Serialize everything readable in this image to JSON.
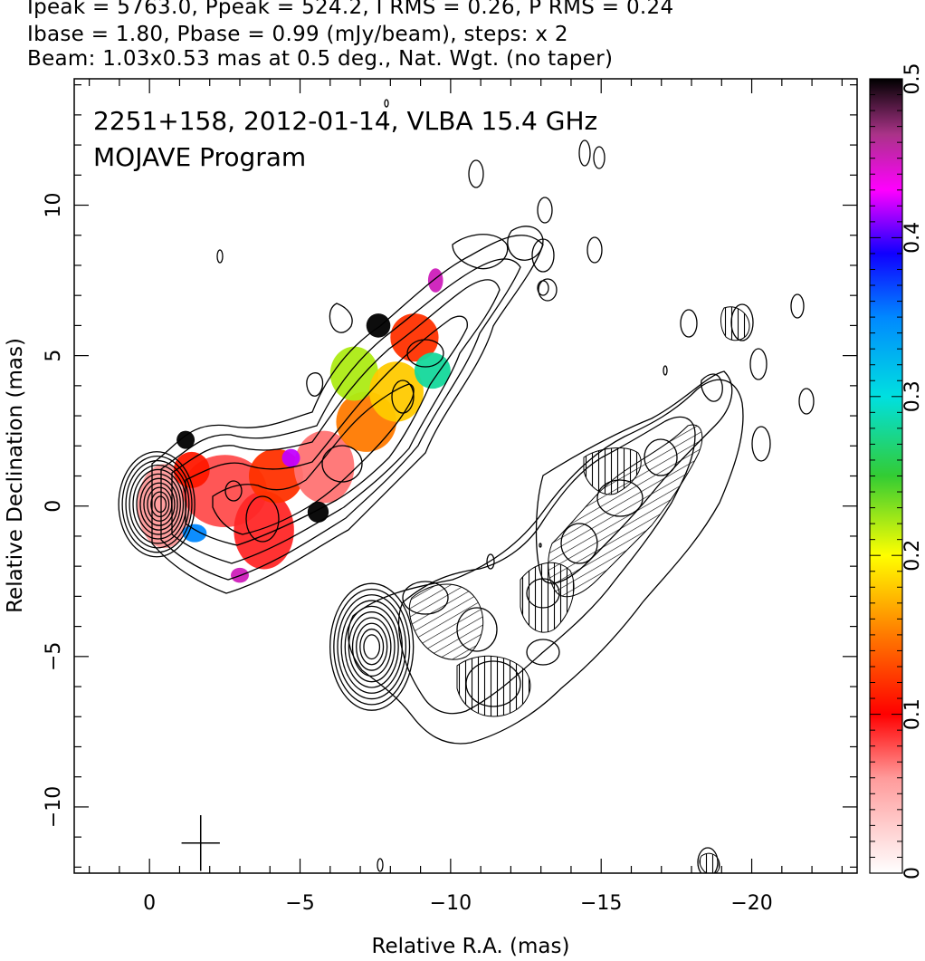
{
  "header": {
    "line1": "Ipeak = 5763.0, Ppeak = 524.2, I RMS = 0.26, P RMS = 0.24",
    "line2": "Ibase = 1.80, Pbase = 0.99 (mJy/beam), steps: x 2",
    "line3": "Beam: 1.03x0.53 mas at 0.5 deg., Nat. Wgt. (no taper)"
  },
  "chart_data": {
    "type": "heatmap",
    "title_line1": "2251+158, 2012-01-14, VLBA 15.4 GHz",
    "title_line2": "MOJAVE Program",
    "xlabel": "Relative R.A. (mas)",
    "ylabel": "Relative Declination (mas)",
    "xlim": [
      2.5,
      -23.5
    ],
    "ylim": [
      -12.2,
      14.2
    ],
    "x_ticks": [
      {
        "value": 0,
        "label": "0"
      },
      {
        "value": -5,
        "label": "−5"
      },
      {
        "value": -10,
        "label": "−10"
      },
      {
        "value": -15,
        "label": "−15"
      },
      {
        "value": -20,
        "label": "−20"
      }
    ],
    "y_ticks": [
      {
        "value": -10,
        "label": "−10"
      },
      {
        "value": -5,
        "label": "−5"
      },
      {
        "value": 0,
        "label": "0"
      },
      {
        "value": 5,
        "label": "5"
      },
      {
        "value": 10,
        "label": "10"
      }
    ],
    "colorbar": {
      "range": [
        0,
        0.5
      ],
      "ticks": [
        {
          "value": 0,
          "label": "0"
        },
        {
          "value": 0.1,
          "label": "0.1"
        },
        {
          "value": 0.2,
          "label": "0.2"
        },
        {
          "value": 0.3,
          "label": "0.3"
        },
        {
          "value": 0.4,
          "label": "0.4"
        },
        {
          "value": 0.5,
          "label": "0.5"
        }
      ]
    },
    "core_position": [
      -0.3,
      0.0
    ],
    "offset_panel_core": [
      -7.5,
      -4.8
    ],
    "beam": {
      "major": 1.03,
      "minor": 0.53,
      "pa_deg": 0.5,
      "position": [
        -1.7,
        -11.2
      ]
    },
    "frac_pol_blobs": [
      {
        "x": -0.5,
        "y": 0.0,
        "rx": 0.9,
        "ry": 1.4,
        "v": 0.06
      },
      {
        "x": -2.5,
        "y": 0.5,
        "rx": 1.4,
        "ry": 1.2,
        "v": 0.08
      },
      {
        "x": -1.4,
        "y": 1.2,
        "rx": 0.6,
        "ry": 0.6,
        "v": 0.11
      },
      {
        "x": -3.8,
        "y": -0.8,
        "rx": 1.0,
        "ry": 1.3,
        "v": 0.09
      },
      {
        "x": -4.2,
        "y": 1.0,
        "rx": 0.9,
        "ry": 0.9,
        "v": 0.12
      },
      {
        "x": -5.8,
        "y": 1.3,
        "rx": 1.0,
        "ry": 1.2,
        "v": 0.07
      },
      {
        "x": -7.2,
        "y": 2.8,
        "rx": 1.0,
        "ry": 1.0,
        "v": 0.15
      },
      {
        "x": -6.8,
        "y": 4.4,
        "rx": 0.8,
        "ry": 0.9,
        "v": 0.22
      },
      {
        "x": -8.2,
        "y": 3.8,
        "rx": 0.9,
        "ry": 1.0,
        "v": 0.18
      },
      {
        "x": -8.8,
        "y": 5.6,
        "rx": 0.8,
        "ry": 0.8,
        "v": 0.12
      },
      {
        "x": -9.4,
        "y": 4.5,
        "rx": 0.6,
        "ry": 0.6,
        "v": 0.28
      },
      {
        "x": -1.5,
        "y": -0.9,
        "rx": 0.4,
        "ry": 0.3,
        "v": 0.35
      },
      {
        "x": -4.7,
        "y": 1.6,
        "rx": 0.3,
        "ry": 0.3,
        "v": 0.42
      },
      {
        "x": -5.6,
        "y": -0.2,
        "rx": 0.35,
        "ry": 0.35,
        "v": 0.5
      },
      {
        "x": -7.6,
        "y": 6.0,
        "rx": 0.4,
        "ry": 0.4,
        "v": 0.5
      },
      {
        "x": -9.5,
        "y": 7.5,
        "rx": 0.25,
        "ry": 0.4,
        "v": 0.45
      },
      {
        "x": -1.2,
        "y": 2.2,
        "rx": 0.3,
        "ry": 0.3,
        "v": 0.5
      },
      {
        "x": -3.0,
        "y": -2.3,
        "rx": 0.3,
        "ry": 0.25,
        "v": 0.45
      }
    ]
  }
}
